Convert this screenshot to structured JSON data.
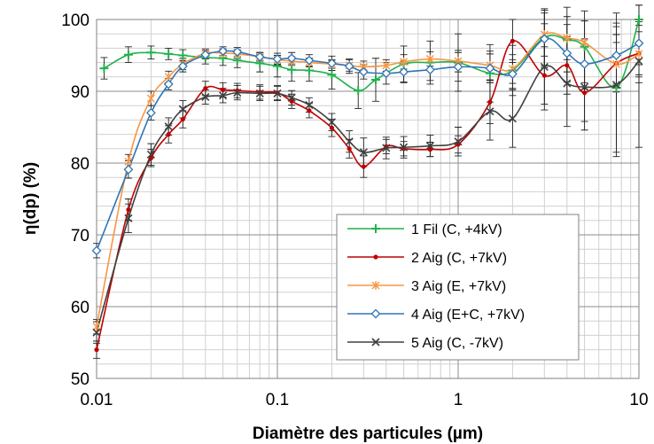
{
  "chart_data": {
    "type": "line",
    "title": "",
    "xlabel": "Diamètre des particules (µm)",
    "ylabel": "η(dp) (%)",
    "xscale": "log",
    "xlim": [
      0.01,
      10
    ],
    "ylim": [
      50,
      100
    ],
    "xticks": [
      {
        "value": 0.01,
        "label": "0.01"
      },
      {
        "value": 0.1,
        "label": "0.1"
      },
      {
        "value": 1,
        "label": "1"
      },
      {
        "value": 10,
        "label": "10"
      }
    ],
    "yticks": [
      50,
      60,
      70,
      80,
      90,
      100
    ],
    "grid": true,
    "legend_position": "center-right",
    "series": [
      {
        "name": "1 Fil (C, +4kV)",
        "color": "#22b14c",
        "marker": "plus",
        "x": [
          0.011,
          0.015,
          0.02,
          0.025,
          0.03,
          0.04,
          0.05,
          0.06,
          0.08,
          0.1,
          0.12,
          0.15,
          0.2,
          0.28,
          0.35,
          0.5,
          0.7,
          1.0,
          1.5,
          2.0,
          3.0,
          4.0,
          5.0,
          7.5,
          10.0
        ],
        "y": [
          93.2,
          95.1,
          95.4,
          95.2,
          95.0,
          94.7,
          94.6,
          94.3,
          93.9,
          93.5,
          93.0,
          92.9,
          92.3,
          90.1,
          91.6,
          93.8,
          94.0,
          94.0,
          92.5,
          92.9,
          97.5,
          97.2,
          96.2,
          90.5,
          100.0
        ],
        "err": [
          1.5,
          1.1,
          0.9,
          0.8,
          0.8,
          0.9,
          1.0,
          1.0,
          1.2,
          1.5,
          1.6,
          1.5,
          2.0,
          2.5,
          3.0,
          2.5,
          3.0,
          4.0,
          4.0,
          3.5,
          4.0,
          4.5,
          5.0,
          9.0,
          8.0
        ]
      },
      {
        "name": "2 Aig (C, +7kV)",
        "color": "#c00000",
        "marker": "dot",
        "x": [
          0.01,
          0.015,
          0.02,
          0.025,
          0.03,
          0.04,
          0.05,
          0.06,
          0.08,
          0.1,
          0.12,
          0.15,
          0.2,
          0.25,
          0.3,
          0.4,
          0.5,
          0.7,
          1.0,
          1.5,
          2.0,
          3.0,
          4.0,
          5.0,
          7.5,
          10.0
        ],
        "y": [
          54.0,
          73.5,
          80.7,
          84.0,
          86.1,
          90.4,
          90.2,
          90.1,
          89.9,
          89.8,
          88.6,
          87.3,
          84.9,
          82.0,
          79.5,
          82.3,
          82.0,
          81.9,
          82.6,
          88.5,
          97.0,
          92.2,
          93.6,
          89.8,
          93.9,
          95.3
        ],
        "err": [
          1.2,
          1.5,
          1.2,
          1.2,
          1.2,
          1.0,
          1.0,
          1.0,
          1.0,
          1.0,
          1.0,
          1.0,
          1.2,
          1.3,
          1.5,
          1.0,
          1.0,
          1.0,
          1.2,
          3.0,
          3.0,
          4.0,
          4.0,
          4.0,
          4.0,
          3.0
        ]
      },
      {
        "name": "3 Aig (E, +7kV)",
        "color": "#f79646",
        "marker": "star",
        "x": [
          0.01,
          0.015,
          0.02,
          0.025,
          0.03,
          0.04,
          0.05,
          0.06,
          0.08,
          0.1,
          0.12,
          0.15,
          0.2,
          0.25,
          0.3,
          0.4,
          0.5,
          0.7,
          1.0,
          1.5,
          2.0,
          3.0,
          4.0,
          5.0,
          7.5,
          10.0
        ],
        "y": [
          57.2,
          80.2,
          89.0,
          92.0,
          93.8,
          95.3,
          95.3,
          95.2,
          94.8,
          94.4,
          94.2,
          94.0,
          93.8,
          93.6,
          93.4,
          93.6,
          94.1,
          94.5,
          94.2,
          93.6,
          93.1,
          97.9,
          97.4,
          96.8,
          93.8,
          95.2
        ],
        "err": [
          1.0,
          1.0,
          1.0,
          0.8,
          0.8,
          0.6,
          0.6,
          0.6,
          0.6,
          0.6,
          0.6,
          0.6,
          0.6,
          0.8,
          0.8,
          0.8,
          1.0,
          1.0,
          1.5,
          2.0,
          2.0,
          3.0,
          3.0,
          3.0,
          3.0,
          4.0
        ]
      },
      {
        "name": "4 Aig (E+C, +7kV)",
        "color": "#2e75b6",
        "marker": "diamond",
        "x": [
          0.01,
          0.015,
          0.02,
          0.025,
          0.03,
          0.04,
          0.05,
          0.06,
          0.08,
          0.1,
          0.12,
          0.15,
          0.2,
          0.25,
          0.3,
          0.4,
          0.5,
          0.7,
          1.0,
          1.5,
          2.0,
          3.0,
          4.0,
          5.0,
          7.5,
          10.0
        ],
        "y": [
          67.8,
          79.1,
          87.0,
          91.0,
          93.5,
          95.1,
          95.6,
          95.5,
          94.8,
          94.5,
          94.6,
          94.3,
          93.9,
          93.5,
          92.7,
          92.5,
          92.7,
          93.0,
          93.4,
          93.2,
          92.4,
          97.3,
          95.3,
          93.8,
          95.0,
          96.7
        ],
        "err": [
          1.0,
          1.2,
          1.0,
          0.8,
          0.8,
          0.6,
          0.6,
          0.6,
          0.6,
          0.8,
          0.8,
          0.8,
          1.0,
          1.0,
          1.0,
          1.5,
          1.5,
          1.5,
          2.0,
          2.0,
          2.0,
          4.0,
          4.0,
          3.5,
          4.0,
          3.0
        ]
      },
      {
        "name": "5 Aig (C, -7kV)",
        "color": "#404040",
        "marker": "cross",
        "x": [
          0.01,
          0.015,
          0.02,
          0.025,
          0.03,
          0.04,
          0.05,
          0.06,
          0.08,
          0.1,
          0.12,
          0.15,
          0.2,
          0.25,
          0.3,
          0.4,
          0.5,
          0.7,
          1.0,
          1.5,
          2.0,
          3.0,
          4.0,
          5.0,
          7.5,
          10.0
        ],
        "y": [
          56.4,
          72.3,
          81.2,
          85.1,
          87.5,
          89.2,
          89.4,
          89.8,
          89.7,
          89.7,
          89.1,
          88.1,
          85.7,
          83.0,
          81.5,
          82.1,
          82.2,
          82.4,
          83.0,
          87.2,
          86.2,
          93.4,
          91.1,
          90.6,
          90.9,
          94.2
        ],
        "err": [
          1.5,
          2.0,
          1.5,
          1.2,
          1.2,
          1.0,
          1.0,
          1.0,
          1.0,
          1.0,
          1.0,
          1.0,
          1.2,
          1.5,
          2.0,
          1.5,
          1.5,
          1.5,
          2.0,
          4.0,
          4.0,
          6.0,
          6.0,
          6.0,
          10.0,
          12.0
        ]
      }
    ]
  }
}
